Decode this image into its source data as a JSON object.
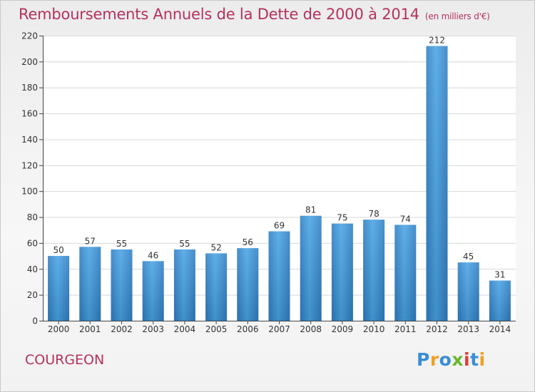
{
  "chart_data": {
    "type": "bar",
    "title": "Remboursements Annuels de la Dette de 2000 à 2014",
    "unit_note": "(en milliers d'€)",
    "xlabel": "",
    "ylabel": "",
    "categories": [
      "2000",
      "2001",
      "2002",
      "2003",
      "2004",
      "2005",
      "2006",
      "2007",
      "2008",
      "2009",
      "2010",
      "2011",
      "2012",
      "2013",
      "2014"
    ],
    "values": [
      50,
      57,
      55,
      46,
      55,
      52,
      56,
      69,
      81,
      75,
      78,
      74,
      212,
      45,
      31
    ],
    "ylim": [
      0,
      220
    ],
    "yticks": [
      0,
      20,
      40,
      60,
      80,
      100,
      120,
      140,
      160,
      180,
      200,
      220
    ],
    "grid": true,
    "bar_color": "#3a8fd6",
    "title_color": "#b5315e"
  },
  "commune": "COURGEON",
  "brand": {
    "name": "Proxiti",
    "letters": [
      {
        "char": "P",
        "color": "#3a8ed4"
      },
      {
        "char": "r",
        "color": "#f0a020"
      },
      {
        "char": "o",
        "color": "#3a8ed4"
      },
      {
        "char": "x",
        "color": "#6ab82c"
      },
      {
        "char": "i",
        "color": "#e03c3c"
      },
      {
        "char": "t",
        "color": "#3a8ed4"
      },
      {
        "char": "i",
        "color": "#f0a020"
      }
    ]
  }
}
